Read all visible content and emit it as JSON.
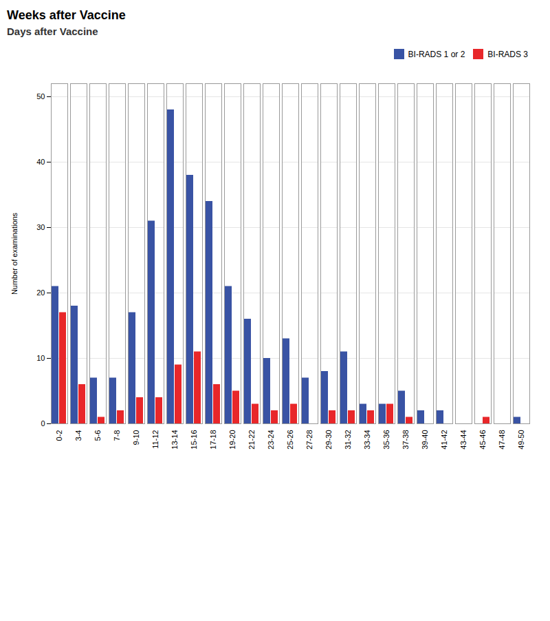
{
  "chart_data": {
    "type": "bar",
    "title": "Weeks after Vaccine",
    "subtitle": "Days after Vaccine",
    "ylabel": "Number of examinations",
    "categories": [
      "0-2",
      "3-4",
      "5-6",
      "7-8",
      "9-10",
      "11-12",
      "13-14",
      "15-16",
      "17-18",
      "19-20",
      "21-22",
      "23-24",
      "25-26",
      "27-28",
      "29-30",
      "31-32",
      "33-34",
      "35-36",
      "37-38",
      "39-40",
      "41-42",
      "43-44",
      "45-46",
      "47-48",
      "49-50"
    ],
    "series": [
      {
        "name": "BI-RADS 1 or 2",
        "color": "#3953A4",
        "values": [
          21,
          18,
          7,
          7,
          17,
          31,
          48,
          38,
          34,
          21,
          16,
          10,
          13,
          7,
          8,
          11,
          3,
          3,
          5,
          2,
          2,
          0,
          0,
          0,
          1
        ]
      },
      {
        "name": "BI-RADS 3",
        "color": "#E8272A",
        "values": [
          17,
          6,
          1,
          2,
          4,
          4,
          9,
          11,
          6,
          5,
          3,
          2,
          3,
          0,
          2,
          2,
          2,
          3,
          1,
          0,
          0,
          0,
          1,
          0,
          0
        ]
      }
    ],
    "ylim": [
      0,
      52
    ],
    "yticks": [
      0,
      10,
      20,
      30,
      40,
      50
    ],
    "grid": true,
    "legend": "upper right"
  }
}
